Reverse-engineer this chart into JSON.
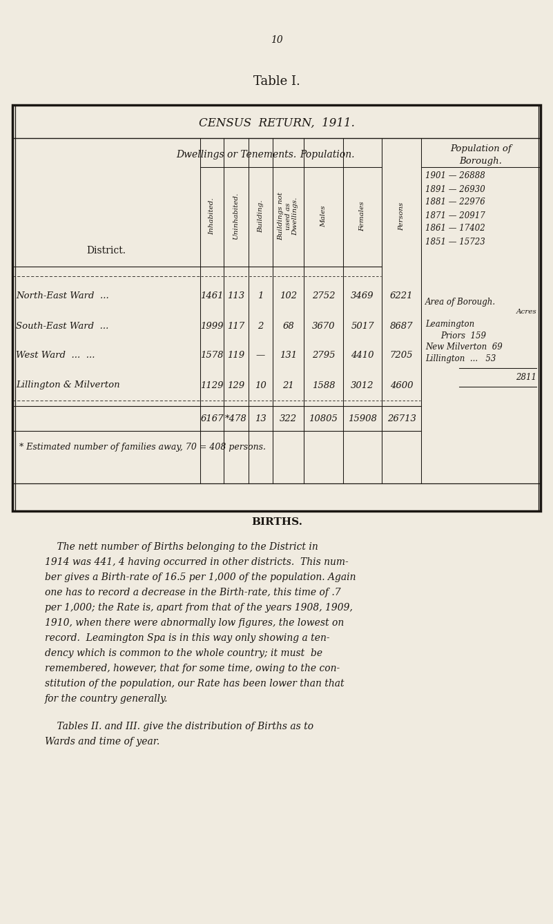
{
  "bg_color": "#f0ebe0",
  "text_color": "#1a1612",
  "page_number": "10",
  "table_title": "Table I.",
  "census_title": "CENSUS  RETURN,  1911.",
  "pop_borough": [
    "1901 — 26888",
    "1891 — 26930",
    "1881 — 22976",
    "1871 — 20917",
    "1861 — 17402",
    "1851 — 15723"
  ],
  "rows": [
    [
      "North-East Ward  ...",
      "1461",
      "113",
      "1",
      "102",
      "2752",
      "3469",
      "6221"
    ],
    [
      "South-East Ward  ...",
      "1999",
      "117",
      "2",
      "68",
      "3670",
      "5017",
      "8687"
    ],
    [
      "West Ward  ...  ...",
      "1578",
      "119",
      "—",
      "131",
      "2795",
      "4410",
      "7205"
    ],
    [
      "Lillington & Milverton",
      "1129",
      "129",
      "10",
      "21",
      "1588",
      "3012",
      "4600"
    ]
  ],
  "totals": [
    "6167",
    "*478",
    "13",
    "322",
    "10805",
    "15908",
    "26713"
  ],
  "footnote": "* Estimated number of families away, 70 = 408 persons.",
  "births_title": "BIRTHS.",
  "births_lines": [
    "    The nett number of Births belonging to the District in",
    "1914 was 441, 4 having occurred in other districts.  This num-",
    "ber gives a Birth-rate of 16.5 per 1,000 of the population. Again",
    "one has to record a decrease in the Birth-rate, this time of .7",
    "per 1,000; the Rate is, apart from that of the years 1908, 1909,",
    "1910, when there were abnormally low figures, the lowest on",
    "record.  Leamington Spa is in this way only showing a ten-",
    "dency which is common to the whole country; it must  be",
    "remembered, however, that for some time, owing to the con-",
    "stitution of the population, our Rate has been lower than that",
    "for the country generally."
  ],
  "births_lines2": [
    "    Tables II. and III. give the distribution of Births as to",
    "Wards and time of year."
  ]
}
